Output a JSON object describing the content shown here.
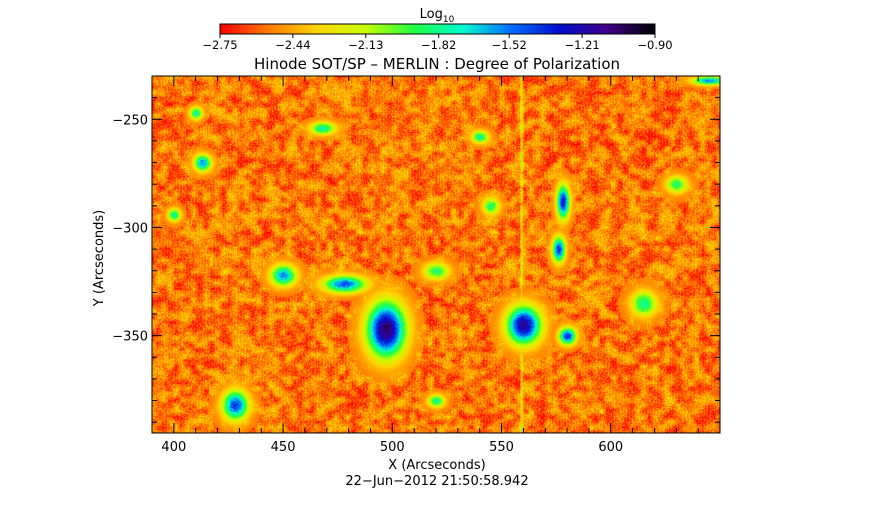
{
  "chart_data": {
    "type": "heatmap",
    "title": "Hinode SOT/SP – MERLIN : Degree of Polarization",
    "xlabel": "X (Arcseconds)",
    "ylabel": "Y (Arcseconds)",
    "xlim": [
      390,
      650
    ],
    "ylim": [
      -395,
      -230
    ],
    "x_ticks": [
      400,
      450,
      500,
      550,
      600
    ],
    "x_tick_labels": [
      "400",
      "450",
      "500",
      "550",
      "600"
    ],
    "y_ticks": [
      -250,
      -300,
      -350
    ],
    "y_tick_labels": [
      "−250",
      "−300",
      "−350"
    ],
    "timestamp": "22−Jun−2012 21:50:58.942",
    "colorbar": {
      "label_base": "Log",
      "label_sub": "10",
      "range": [
        -2.75,
        -0.9
      ],
      "ticks": [
        -2.75,
        -2.44,
        -2.13,
        -1.82,
        -1.52,
        -1.21,
        -0.9
      ],
      "tick_labels": [
        "−2.75",
        "−2.44",
        "−2.13",
        "−1.82",
        "−1.52",
        "−1.21",
        "−0.90"
      ],
      "colors": [
        "#ff0000",
        "#ff7a00",
        "#ffd400",
        "#c8ff00",
        "#20ff40",
        "#00ffd0",
        "#0070ff",
        "#0010d0",
        "#40008a",
        "#000000"
      ]
    },
    "grid": false,
    "active_regions": [
      {
        "x": 497,
        "y": -347,
        "rx": 9,
        "ry": 13,
        "peak": -1.05
      },
      {
        "x": 560,
        "y": -345,
        "rx": 8,
        "ry": 9,
        "peak": -1.15
      },
      {
        "x": 578,
        "y": -288,
        "rx": 3,
        "ry": 8,
        "peak": -1.3
      },
      {
        "x": 576,
        "y": -310,
        "rx": 3,
        "ry": 6,
        "peak": -1.35
      },
      {
        "x": 478,
        "y": -326,
        "rx": 10,
        "ry": 4,
        "peak": -1.45
      },
      {
        "x": 580,
        "y": -350,
        "rx": 4,
        "ry": 4,
        "peak": -1.35
      },
      {
        "x": 428,
        "y": -382,
        "rx": 6,
        "ry": 7,
        "peak": -1.4
      },
      {
        "x": 450,
        "y": -322,
        "rx": 6,
        "ry": 5,
        "peak": -1.55
      },
      {
        "x": 413,
        "y": -270,
        "rx": 4,
        "ry": 4,
        "peak": -1.55
      },
      {
        "x": 468,
        "y": -254,
        "rx": 6,
        "ry": 3,
        "peak": -1.75
      },
      {
        "x": 410,
        "y": -247,
        "rx": 3,
        "ry": 3,
        "peak": -1.75
      },
      {
        "x": 400,
        "y": -294,
        "rx": 3,
        "ry": 3,
        "peak": -1.75
      },
      {
        "x": 540,
        "y": -258,
        "rx": 4,
        "ry": 3,
        "peak": -1.8
      },
      {
        "x": 520,
        "y": -380,
        "rx": 4,
        "ry": 3,
        "peak": -1.8
      },
      {
        "x": 615,
        "y": -335,
        "rx": 6,
        "ry": 6,
        "peak": -1.8
      },
      {
        "x": 630,
        "y": -280,
        "rx": 5,
        "ry": 4,
        "peak": -1.85
      },
      {
        "x": 645,
        "y": -232,
        "rx": 8,
        "ry": 2,
        "peak": -1.55
      },
      {
        "x": 520,
        "y": -320,
        "rx": 6,
        "ry": 4,
        "peak": -1.85
      },
      {
        "x": 545,
        "y": -290,
        "rx": 4,
        "ry": 4,
        "peak": -1.85
      }
    ],
    "vertical_streak_x": 559
  }
}
